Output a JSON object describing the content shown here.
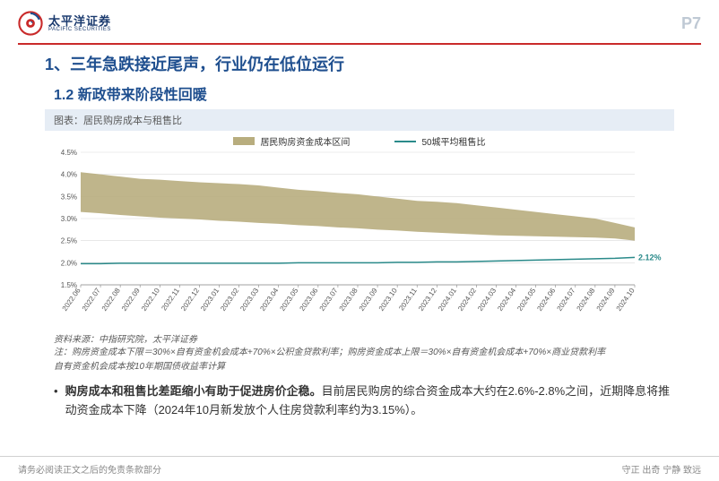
{
  "header": {
    "logo_cn": "太平洋证券",
    "logo_en": "PACIFIC SECURITIES",
    "page_label": "P7"
  },
  "title": "1、三年急跌接近尾声，行业仍在低位运行",
  "subtitle": "1.2 新政带来阶段性回暖",
  "chart": {
    "caption": "图表：居民购房成本与租售比",
    "type": "area+line",
    "legend": [
      {
        "label": "居民购房资金成本区间",
        "kind": "area",
        "color": "#b8ad7e"
      },
      {
        "label": "50城平均租售比",
        "kind": "line",
        "color": "#2a8a8a"
      }
    ],
    "x_categories": [
      "2022.06",
      "2022.07",
      "2022.08",
      "2022.09",
      "2022.10",
      "2022.11",
      "2022.12",
      "2023.01",
      "2023.02",
      "2023.03",
      "2023.04",
      "2023.05",
      "2023.06",
      "2023.07",
      "2023.08",
      "2023.09",
      "2023.10",
      "2023.11",
      "2023.12",
      "2024.01",
      "2024.02",
      "2024.03",
      "2024.04",
      "2024.05",
      "2024.06",
      "2024.07",
      "2024.08",
      "2024.09",
      "2024.10"
    ],
    "series_upper": [
      4.05,
      4.0,
      3.95,
      3.9,
      3.88,
      3.85,
      3.82,
      3.8,
      3.78,
      3.75,
      3.7,
      3.65,
      3.62,
      3.58,
      3.55,
      3.5,
      3.45,
      3.4,
      3.38,
      3.35,
      3.3,
      3.25,
      3.2,
      3.15,
      3.1,
      3.05,
      3.0,
      2.9,
      2.8
    ],
    "series_lower": [
      3.15,
      3.12,
      3.08,
      3.05,
      3.02,
      3.0,
      2.98,
      2.95,
      2.93,
      2.9,
      2.88,
      2.85,
      2.83,
      2.8,
      2.78,
      2.75,
      2.73,
      2.7,
      2.68,
      2.66,
      2.64,
      2.62,
      2.61,
      2.6,
      2.59,
      2.58,
      2.57,
      2.55,
      2.5
    ],
    "series_line": [
      1.98,
      1.98,
      1.99,
      1.99,
      1.99,
      1.99,
      1.99,
      1.99,
      1.99,
      1.99,
      1.99,
      2.0,
      2.0,
      2.0,
      2.0,
      2.0,
      2.01,
      2.01,
      2.02,
      2.02,
      2.03,
      2.04,
      2.05,
      2.06,
      2.07,
      2.08,
      2.09,
      2.1,
      2.12
    ],
    "endpoint_label": "2.12%",
    "ylim": [
      1.5,
      4.5
    ],
    "ytick_step": 0.5,
    "ytick_labels": [
      "1.5%",
      "2.0%",
      "2.5%",
      "3.0%",
      "3.5%",
      "4.0%",
      "4.5%"
    ],
    "area_color": "#b8ad7e",
    "line_color": "#2a8a8a",
    "grid_color": "#d9d9d9",
    "axis_color": "#888888",
    "background_color": "#ffffff",
    "label_fontsize": 9,
    "tick_fontsize": 8,
    "line_width": 1.5
  },
  "source": "资料来源：中指研究院，太平洋证券",
  "note_line1": "注：购房资金成本下限＝30%×自有资金机会成本+70%×公积金贷款利率；购房资金成本上限＝30%×自有资金机会成本+70%×商业贷款利率",
  "note_line2": "自有资金机会成本按10年期国债收益率计算",
  "bullet": {
    "bold_lead": "购房成本和租售比差距缩小有助于促进房价企稳。",
    "rest": "目前居民购房的综合资金成本大约在2.6%-2.8%之间，近期降息将推动资金成本下降（2024年10月新发放个人住房贷款利率约为3.15%）。"
  },
  "footer": {
    "left": "请务必阅读正文之后的免责条款部分",
    "right": "守正 出奇 宁静 致远"
  },
  "colors": {
    "brand_blue": "#1f4f8f",
    "brand_red": "#c92a2a",
    "page_num_gray": "#bfc9d4",
    "caption_bg": "#e6edf5"
  }
}
